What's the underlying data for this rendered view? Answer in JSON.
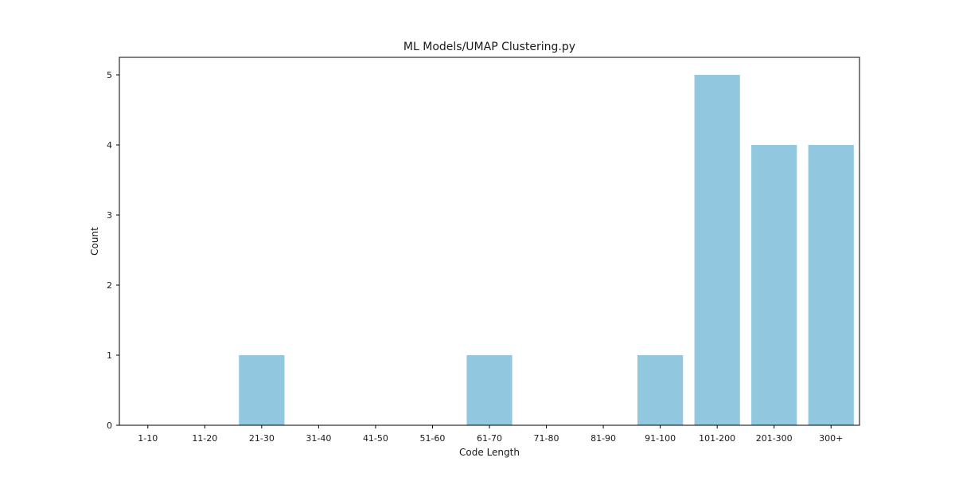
{
  "chart_data": {
    "type": "bar",
    "title": "ML Models/UMAP Clustering.py",
    "xlabel": "Code Length",
    "ylabel": "Count",
    "categories": [
      "1-10",
      "11-20",
      "21-30",
      "31-40",
      "41-50",
      "51-60",
      "61-70",
      "71-80",
      "81-90",
      "91-100",
      "101-200",
      "201-300",
      "300+"
    ],
    "values": [
      0,
      0,
      1,
      0,
      0,
      0,
      1,
      0,
      0,
      1,
      5,
      4,
      4
    ],
    "ylim": [
      0,
      5.25
    ],
    "yticks": [
      0,
      1,
      2,
      3,
      4,
      5
    ],
    "grid": false,
    "bar_color": "#92c8df"
  }
}
